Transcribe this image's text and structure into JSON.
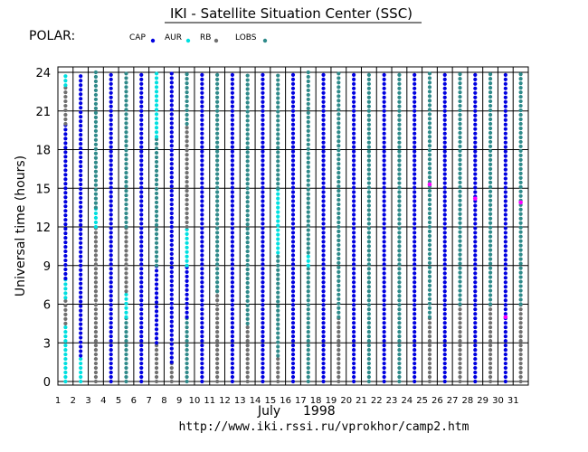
{
  "title": "IKI - Satellite Situation Center (SSC)",
  "satellite_label": "POLAR:",
  "month_label": "July",
  "year_label": "1998",
  "url": "http://www.iki.rssi.ru/vprokhor/camp2.htm",
  "colors": {
    "CAP": "#0000e0",
    "AUR": "#00e0e0",
    "RB": "#707070",
    "LOBS": "#2f8a8a",
    "extra": "#ff00ff"
  },
  "chart_data": {
    "type": "scatter",
    "title": "IKI - Satellite Situation Center (SSC)",
    "xlabel": "",
    "ylabel": "Universal time  (hours)",
    "x_ticks": [
      "1",
      "2",
      "3",
      "4",
      "5",
      "6",
      "7",
      "8",
      "9",
      "10",
      "11",
      "12",
      "13",
      "14",
      "15",
      "16",
      "17",
      "18",
      "19",
      "20",
      "21",
      "22",
      "23",
      "24",
      "25",
      "26",
      "27",
      "28",
      "29",
      "30",
      "31"
    ],
    "y_ticks": [
      0,
      3,
      6,
      9,
      12,
      15,
      18,
      21,
      24
    ],
    "ylim": [
      0,
      24
    ],
    "xlim": [
      1,
      32
    ],
    "grid": true,
    "legend": [
      {
        "name": "CAP",
        "key": "CAP"
      },
      {
        "name": "AUR",
        "key": "AUR"
      },
      {
        "name": "RB",
        "key": "RB"
      },
      {
        "name": "LOBS",
        "key": "LOBS"
      }
    ],
    "columns": [
      {
        "day": 1,
        "x": 1.5,
        "segments": [
          [
            "AUR",
            0,
            4.5
          ],
          [
            "RB",
            4.5,
            6.5
          ],
          [
            "AUR",
            6.5,
            8
          ],
          [
            "CAP",
            8,
            20
          ],
          [
            "RB",
            20,
            23
          ],
          [
            "AUR",
            23,
            24
          ]
        ]
      },
      {
        "day": 2,
        "x": 2.5,
        "segments": [
          [
            "AUR",
            0,
            2
          ],
          [
            "CAP",
            2,
            24
          ]
        ]
      },
      {
        "day": 3,
        "x": 3.5,
        "segments": [
          [
            "RB",
            0,
            12
          ],
          [
            "AUR",
            12,
            13.5
          ],
          [
            "LOBS",
            13.5,
            24
          ]
        ]
      },
      {
        "day": 4,
        "x": 4.5,
        "segments": [
          [
            "CAP",
            0,
            24
          ]
        ]
      },
      {
        "day": 5,
        "x": 5.5,
        "segments": [
          [
            "LOBS",
            0,
            5
          ],
          [
            "AUR",
            5,
            7
          ],
          [
            "RB",
            7,
            12
          ],
          [
            "LOBS",
            12,
            24
          ]
        ]
      },
      {
        "day": 6,
        "x": 6.5,
        "segments": [
          [
            "CAP",
            0,
            24
          ]
        ]
      },
      {
        "day": 7,
        "x": 7.5,
        "segments": [
          [
            "RB",
            0,
            3
          ],
          [
            "CAP",
            3,
            9
          ],
          [
            "LOBS",
            9,
            19
          ],
          [
            "AUR",
            19,
            24
          ]
        ]
      },
      {
        "day": 8,
        "x": 8.5,
        "segments": [
          [
            "RB",
            0,
            1.5
          ],
          [
            "CAP",
            1.5,
            24
          ]
        ]
      },
      {
        "day": 9,
        "x": 9.5,
        "segments": [
          [
            "LOBS",
            0,
            5
          ],
          [
            "CAP",
            5,
            9
          ],
          [
            "AUR",
            9,
            12
          ],
          [
            "RB",
            12,
            20
          ],
          [
            "LOBS",
            20,
            24
          ]
        ]
      },
      {
        "day": 10,
        "x": 10.5,
        "segments": [
          [
            "CAP",
            0,
            24
          ]
        ]
      },
      {
        "day": 11,
        "x": 11.5,
        "segments": [
          [
            "RB",
            0,
            7
          ],
          [
            "LOBS",
            7,
            24
          ]
        ]
      },
      {
        "day": 12,
        "x": 12.5,
        "segments": [
          [
            "CAP",
            0,
            24
          ]
        ]
      },
      {
        "day": 13,
        "x": 13.5,
        "segments": [
          [
            "RB",
            0,
            4.5
          ],
          [
            "LOBS",
            4.5,
            24
          ]
        ]
      },
      {
        "day": 14,
        "x": 14.5,
        "segments": [
          [
            "CAP",
            0,
            24
          ]
        ]
      },
      {
        "day": 15,
        "x": 15.5,
        "segments": [
          [
            "RB",
            0,
            2
          ],
          [
            "LOBS",
            2,
            10
          ],
          [
            "AUR",
            10,
            15
          ],
          [
            "LOBS",
            15,
            24
          ]
        ]
      },
      {
        "day": 16,
        "x": 16.5,
        "segments": [
          [
            "CAP",
            0,
            24
          ]
        ]
      },
      {
        "day": 17,
        "x": 17.5,
        "segments": [
          [
            "LOBS",
            0,
            9
          ],
          [
            "AUR",
            9,
            10
          ],
          [
            "LOBS",
            10,
            24
          ]
        ]
      },
      {
        "day": 18,
        "x": 18.5,
        "segments": [
          [
            "CAP",
            0,
            24
          ]
        ]
      },
      {
        "day": 19,
        "x": 19.5,
        "segments": [
          [
            "RB",
            0,
            5
          ],
          [
            "LOBS",
            5,
            24
          ]
        ]
      },
      {
        "day": 20,
        "x": 20.5,
        "segments": [
          [
            "CAP",
            0,
            24
          ]
        ]
      },
      {
        "day": 21,
        "x": 21.5,
        "segments": [
          [
            "LOBS",
            0,
            24
          ]
        ]
      },
      {
        "day": 22,
        "x": 22.5,
        "segments": [
          [
            "CAP",
            0,
            24
          ]
        ]
      },
      {
        "day": 23,
        "x": 23.5,
        "segments": [
          [
            "LOBS",
            0,
            24
          ]
        ]
      },
      {
        "day": 24,
        "x": 24.5,
        "segments": [
          [
            "CAP",
            0,
            24
          ]
        ]
      },
      {
        "day": 25,
        "x": 25.5,
        "segments": [
          [
            "RB",
            0,
            5
          ],
          [
            "LOBS",
            5,
            24
          ]
        ]
      },
      {
        "day": 26,
        "x": 26.5,
        "segments": [
          [
            "CAP",
            0,
            24
          ]
        ]
      },
      {
        "day": 27,
        "x": 27.5,
        "segments": [
          [
            "RB",
            0,
            6
          ],
          [
            "LOBS",
            6,
            24
          ]
        ]
      },
      {
        "day": 28,
        "x": 28.5,
        "segments": [
          [
            "CAP",
            0,
            24
          ]
        ]
      },
      {
        "day": 29,
        "x": 29.5,
        "segments": [
          [
            "RB",
            0,
            6
          ],
          [
            "LOBS",
            6,
            24
          ]
        ]
      },
      {
        "day": 30,
        "x": 30.5,
        "segments": [
          [
            "CAP",
            0,
            24
          ]
        ]
      },
      {
        "day": 31,
        "x": 31.5,
        "segments": [
          [
            "RB",
            0,
            6
          ],
          [
            "LOBS",
            6,
            24
          ]
        ]
      }
    ],
    "extra_points": [
      {
        "day": 28,
        "y": 14.2
      },
      {
        "day": 30,
        "y": 5
      },
      {
        "day": 25,
        "y": 15.3
      },
      {
        "day": 31,
        "y": 13.9
      }
    ]
  }
}
